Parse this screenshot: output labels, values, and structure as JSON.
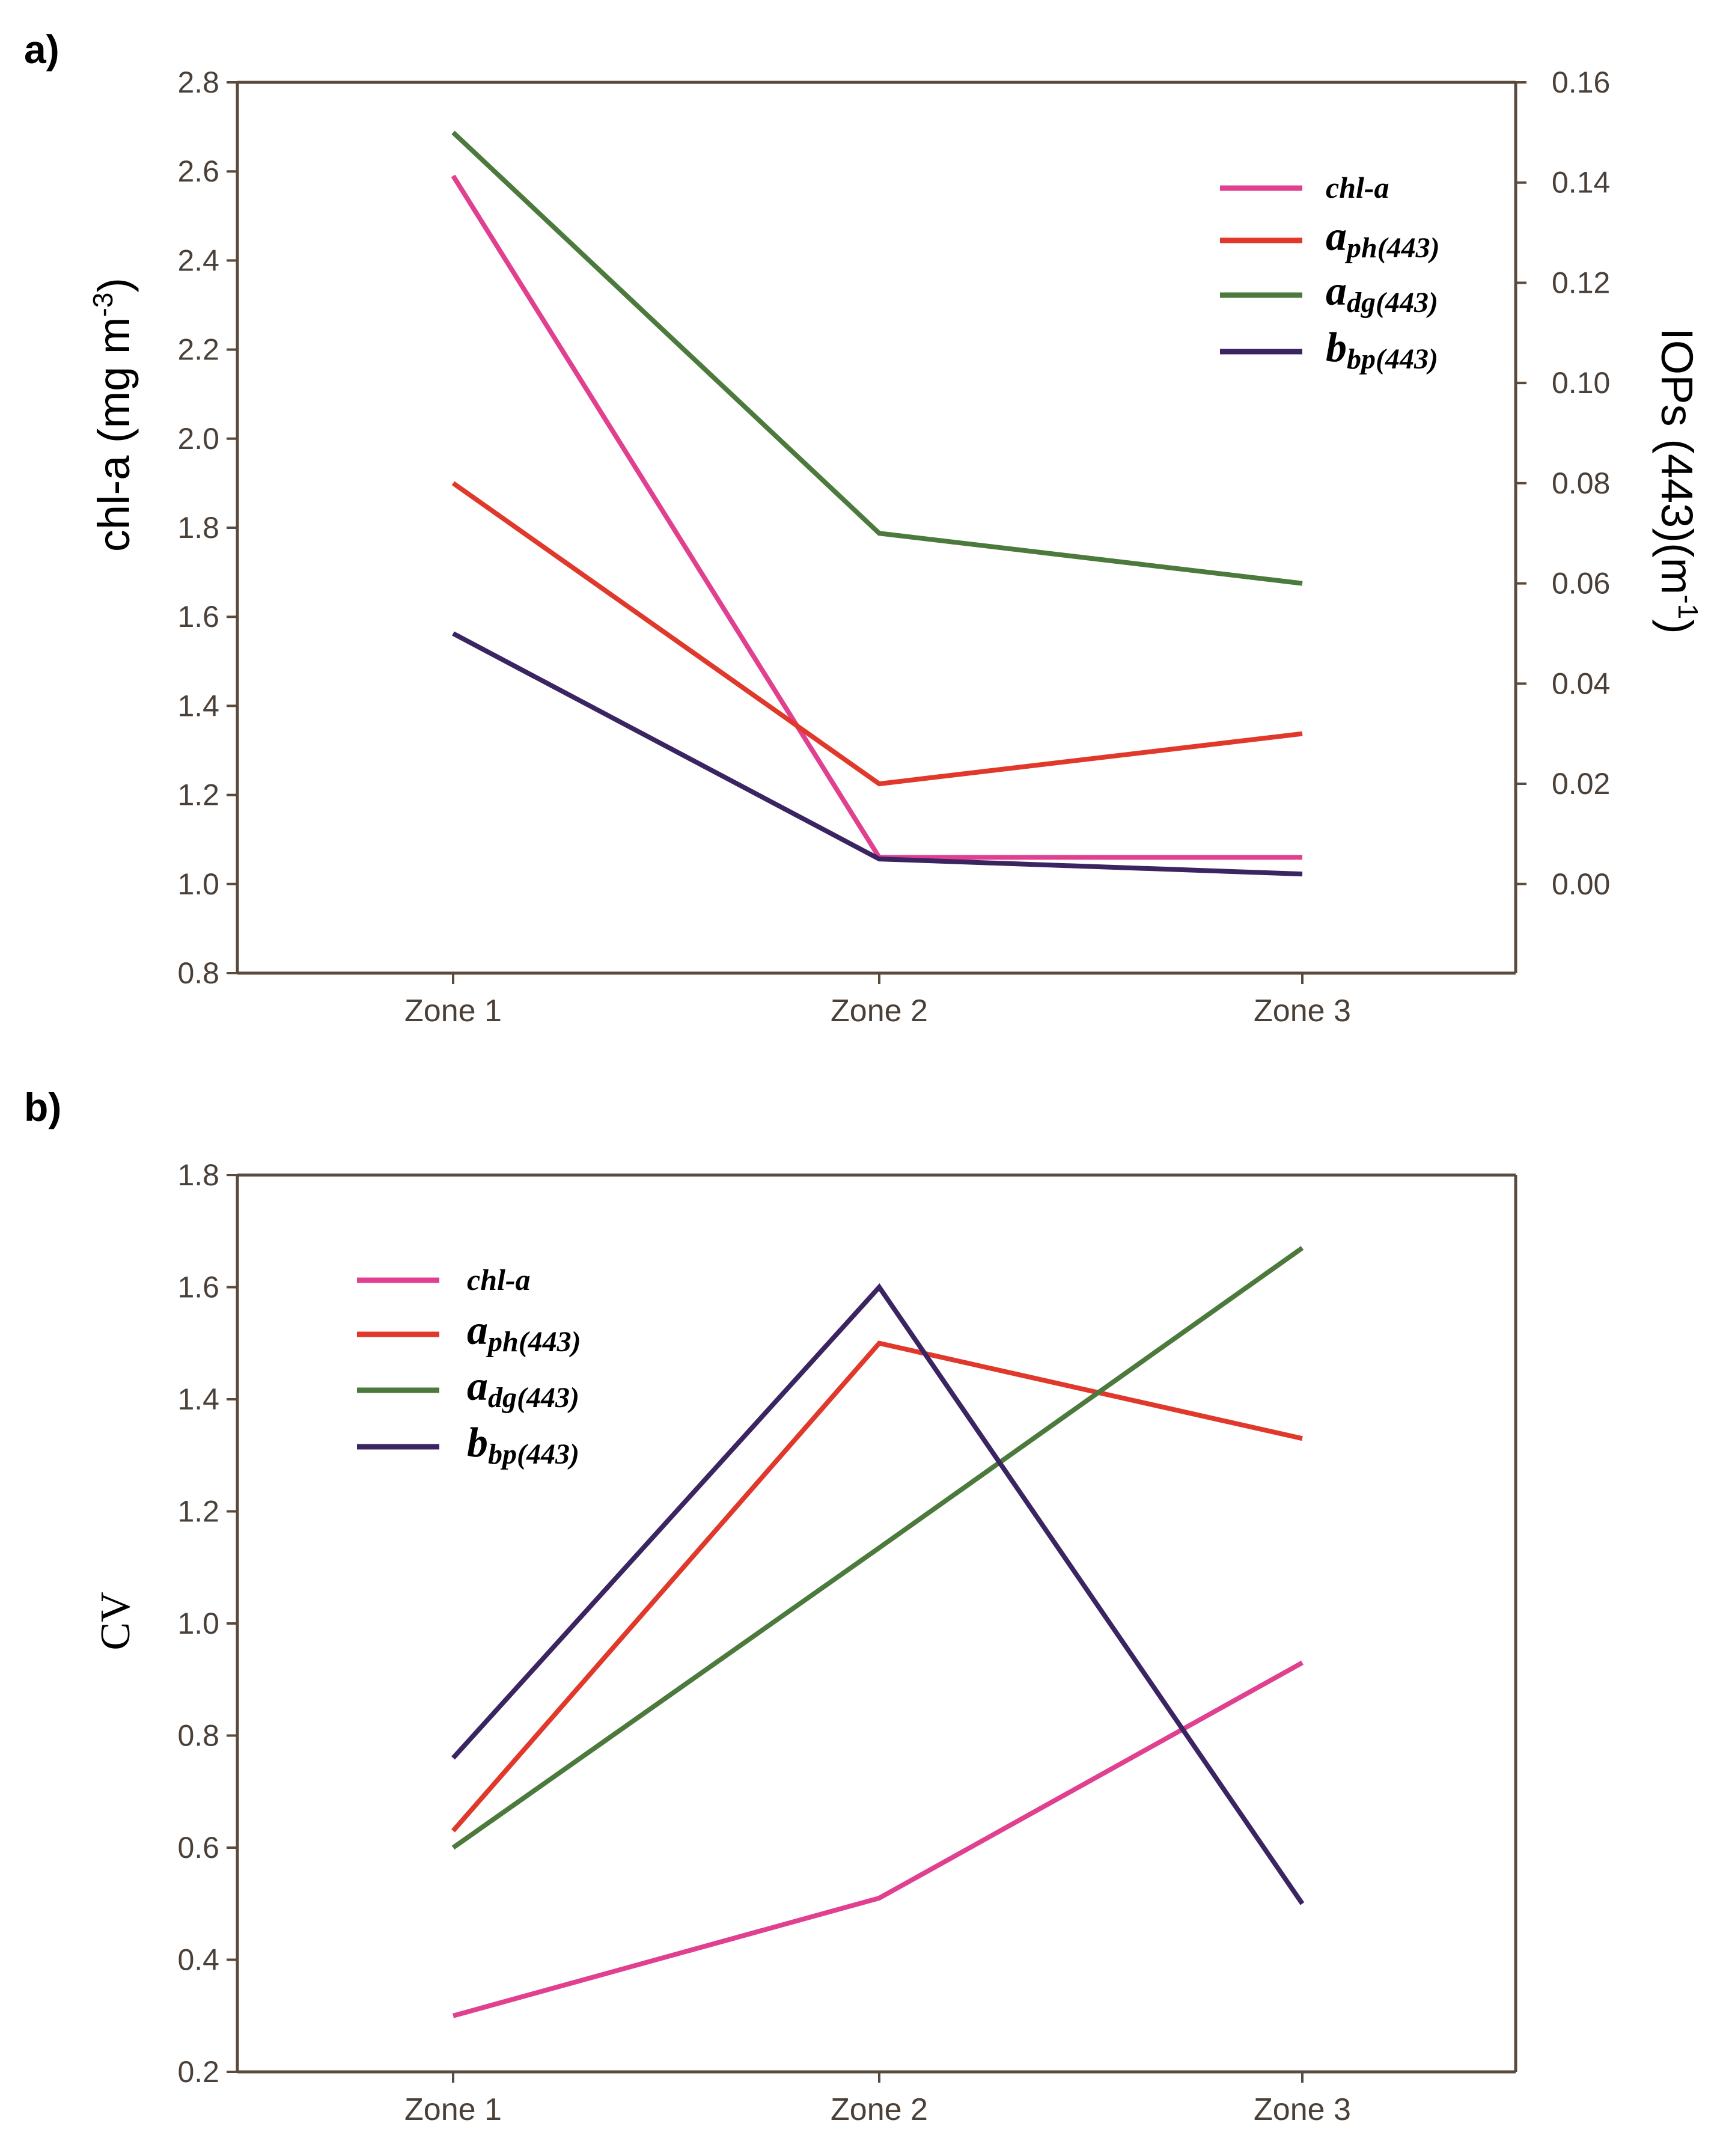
{
  "chart_data": [
    {
      "panel_label": "a)",
      "type": "line",
      "categories": [
        "Zone 1",
        "Zone 2",
        "Zone 3"
      ],
      "ylabel": "chl-a (mg m-3)",
      "ylabel_main": "chl-a (mg m",
      "ylabel_sup": "-3",
      "ylabel_end": ")",
      "y2label_main": "IOPs (443)(m",
      "y2label_sup": "-1",
      "y2label_end": ")",
      "ylim": [
        0.8,
        2.8
      ],
      "yticks": [
        "0.8",
        "1.0",
        "1.2",
        "1.4",
        "1.6",
        "1.8",
        "2.0",
        "2.2",
        "2.4",
        "2.6",
        "2.8"
      ],
      "y2lim": [
        -0.01778,
        0.16
      ],
      "y2ticks": [
        "0.00",
        "0.02",
        "0.04",
        "0.06",
        "0.08",
        "0.10",
        "0.12",
        "0.14",
        "0.16"
      ],
      "legend_position": "top-right",
      "series": [
        {
          "name": "chl-a",
          "main": "chl-a",
          "sub": "",
          "axis": "left",
          "color": "#e0408f",
          "values": [
            2.59,
            1.06,
            1.06
          ]
        },
        {
          "name": "aph(443)",
          "main": "a",
          "sub": "ph(443)",
          "axis": "right",
          "color": "#e0392b",
          "values": [
            0.08,
            0.02,
            0.03
          ]
        },
        {
          "name": "adg(443)",
          "main": "a",
          "sub": "dg(443)",
          "axis": "right",
          "color": "#4b7a3c",
          "values": [
            0.15,
            0.07,
            0.06
          ]
        },
        {
          "name": "bbp(443)",
          "main": "b",
          "sub": "bp(443)",
          "axis": "right",
          "color": "#3b2462",
          "values": [
            0.05,
            0.005,
            0.002
          ]
        }
      ]
    },
    {
      "panel_label": "b)",
      "type": "line",
      "categories": [
        "Zone 1",
        "Zone 2",
        "Zone 3"
      ],
      "ylabel": "CV",
      "ylim": [
        0.2,
        1.8
      ],
      "yticks": [
        "0.2",
        "0.4",
        "0.6",
        "0.8",
        "1.0",
        "1.2",
        "1.4",
        "1.6",
        "1.8"
      ],
      "legend_position": "top-left",
      "series": [
        {
          "name": "chl-a",
          "main": "chl-a",
          "sub": "",
          "color": "#e0408f",
          "values": [
            0.3,
            0.51,
            0.93
          ]
        },
        {
          "name": "aph(443)",
          "main": "a",
          "sub": "ph(443)",
          "color": "#e0392b",
          "values": [
            0.63,
            1.5,
            1.33
          ]
        },
        {
          "name": "adg(443)",
          "main": "a",
          "sub": "dg(443)",
          "color": "#4b7a3c",
          "values": [
            0.6,
            1.135,
            1.67
          ]
        },
        {
          "name": "bbp(443)",
          "main": "b",
          "sub": "bp(443)",
          "color": "#3b2462",
          "values": [
            0.76,
            1.6,
            0.5
          ]
        }
      ]
    }
  ]
}
